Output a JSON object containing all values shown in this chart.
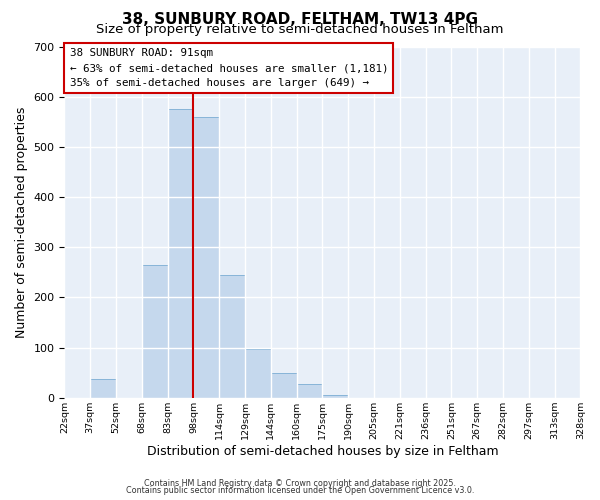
{
  "title": "38, SUNBURY ROAD, FELTHAM, TW13 4PG",
  "subtitle": "Size of property relative to semi-detached houses in Feltham",
  "bar_heights": [
    0,
    37,
    0,
    265,
    575,
    560,
    245,
    97,
    50,
    27,
    5,
    0,
    0,
    0,
    0,
    0,
    0,
    0,
    0,
    0
  ],
  "bin_labels": [
    "22sqm",
    "37sqm",
    "52sqm",
    "68sqm",
    "83sqm",
    "98sqm",
    "114sqm",
    "129sqm",
    "144sqm",
    "160sqm",
    "175sqm",
    "190sqm",
    "205sqm",
    "221sqm",
    "236sqm",
    "251sqm",
    "267sqm",
    "282sqm",
    "297sqm",
    "313sqm",
    "328sqm"
  ],
  "bar_color": "#c5d8ed",
  "bar_edge_color": "#7aadd4",
  "vline_x": 5.0,
  "vline_color": "#cc0000",
  "annotation_title": "38 SUNBURY ROAD: 91sqm",
  "annotation_line1": "← 63% of semi-detached houses are smaller (1,181)",
  "annotation_line2": "35% of semi-detached houses are larger (649) →",
  "xlabel": "Distribution of semi-detached houses by size in Feltham",
  "ylabel": "Number of semi-detached properties",
  "ylim": [
    0,
    700
  ],
  "yticks": [
    0,
    100,
    200,
    300,
    400,
    500,
    600,
    700
  ],
  "footer1": "Contains HM Land Registry data © Crown copyright and database right 2025.",
  "footer2": "Contains public sector information licensed under the Open Government Licence v3.0.",
  "bg_color": "#ffffff",
  "plot_bg_color": "#e8eff8",
  "grid_color": "#ffffff",
  "title_fontsize": 11,
  "subtitle_fontsize": 9.5,
  "axis_label_fontsize": 9,
  "tick_fontsize": 8,
  "xtick_fontsize": 6.8,
  "annotation_box_color": "#ffffff",
  "annotation_box_edge": "#cc0000",
  "annotation_fontsize": 7.8
}
